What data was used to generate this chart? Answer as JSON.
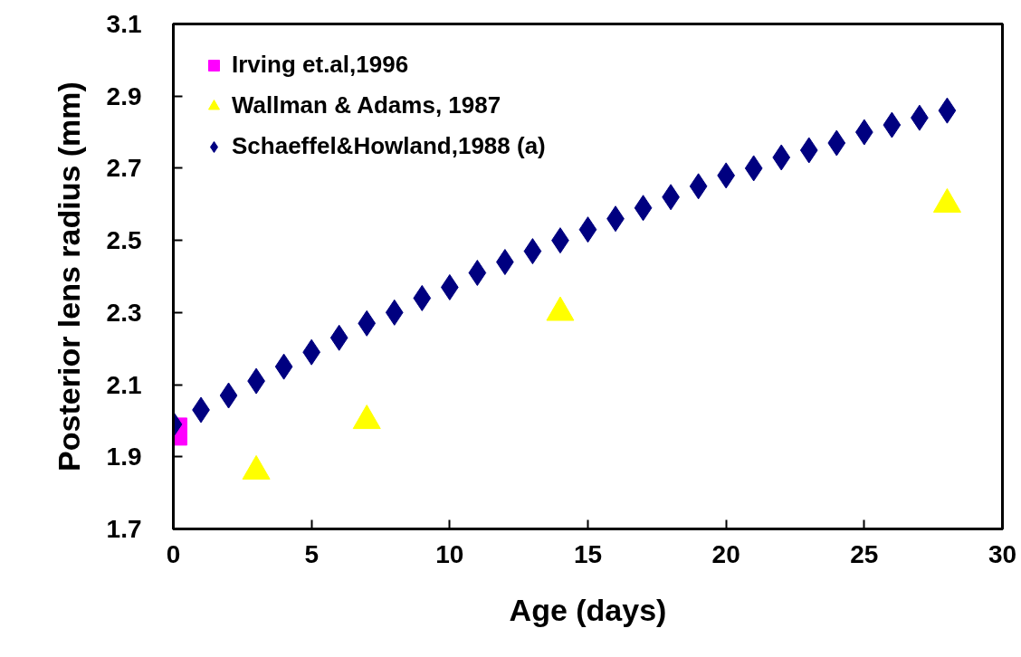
{
  "chart_data": {
    "type": "scatter",
    "xlabel": "Age (days)",
    "ylabel": "Posterior lens radius (mm)",
    "xlim": [
      0,
      30
    ],
    "xticks": [
      0,
      5,
      10,
      15,
      20,
      25,
      30
    ],
    "ylim": [
      1.7,
      3.1
    ],
    "yticks": [
      1.7,
      1.9,
      2.1,
      2.3,
      2.5,
      2.7,
      2.9,
      3.1
    ],
    "grid": false,
    "legend": "top left",
    "series": [
      {
        "name": "Irving et.al,1996",
        "color": "#ff00ff",
        "marker": "square",
        "x": [
          0
        ],
        "values": [
          1.97
        ]
      },
      {
        "name": "Wallman & Adams, 1987",
        "color": "#ffff00",
        "marker": "triangle",
        "x": [
          3,
          7,
          14,
          28
        ],
        "values": [
          1.86,
          2.0,
          2.3,
          2.6
        ]
      },
      {
        "name": "Schaeffel&Howland,1988 (a)",
        "color": "#000080",
        "marker": "diamond",
        "x": [
          0,
          1,
          2,
          3,
          4,
          5,
          6,
          7,
          8,
          9,
          10,
          11,
          12,
          13,
          14,
          15,
          16,
          17,
          18,
          19,
          20,
          21,
          22,
          23,
          24,
          25,
          26,
          27,
          28
        ],
        "values": [
          1.99,
          2.03,
          2.07,
          2.11,
          2.15,
          2.19,
          2.23,
          2.27,
          2.3,
          2.34,
          2.37,
          2.41,
          2.44,
          2.47,
          2.5,
          2.53,
          2.56,
          2.59,
          2.62,
          2.65,
          2.68,
          2.7,
          2.73,
          2.75,
          2.77,
          2.8,
          2.82,
          2.84,
          2.86
        ]
      }
    ]
  }
}
